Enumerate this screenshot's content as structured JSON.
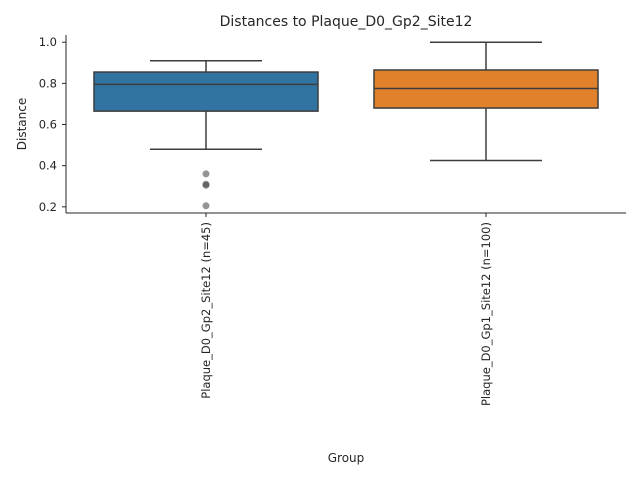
{
  "chart_data": {
    "type": "box",
    "title": "Distances to Plaque_D0_Gp2_Site12",
    "xlabel": "Group",
    "ylabel": "Distance",
    "ylim": [
      0.17,
      1.035
    ],
    "yticks": [
      0.2,
      0.4,
      0.6,
      0.8,
      1.0
    ],
    "ytick_labels": [
      "0.2",
      "0.4",
      "0.6",
      "0.8",
      "1.0"
    ],
    "grid": false,
    "categories": [
      "Plaque_D0_Gp2_Site12 (n=45)",
      "Plaque_D0_Gp1_Site12 (n=100)"
    ],
    "boxes": [
      {
        "category": "Plaque_D0_Gp2_Site12 (n=45)",
        "color": "#3274a1",
        "whisker_low": 0.48,
        "q1": 0.665,
        "median": 0.795,
        "q3": 0.855,
        "whisker_high": 0.91,
        "outliers": [
          0.36,
          0.31,
          0.305,
          0.205
        ]
      },
      {
        "category": "Plaque_D0_Gp1_Site12 (n=100)",
        "color": "#e1812c",
        "whisker_low": 0.425,
        "q1": 0.68,
        "median": 0.775,
        "q3": 0.865,
        "whisker_high": 1.0,
        "outliers": []
      }
    ]
  }
}
